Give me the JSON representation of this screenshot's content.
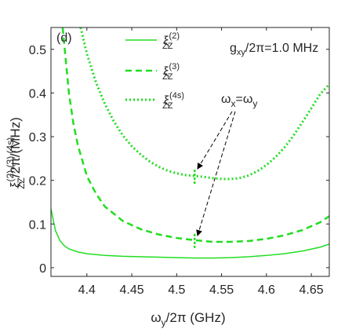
{
  "chart_data": {
    "type": "line",
    "panel_label": "(d)",
    "annotation_top": "g",
    "annotation_top_sub": "xy",
    "annotation_top_rest": "/2π=1.0 MHz",
    "annotation_arrow_w1": "ω",
    "annotation_arrow_w1_sub": "x",
    "annotation_arrow_eq": "=",
    "annotation_arrow_w2": "ω",
    "annotation_arrow_w2_sub": "y",
    "xlabel_main": "ω",
    "xlabel_sub": "y",
    "xlabel_rest": "/2π (GHz)",
    "ylabel_main": "ξ",
    "ylabel_sub": "ZZ",
    "ylabel_sup": "(2),(3),(4s)",
    "ylabel_rest": "/2π/(MHz)",
    "xlim": [
      4.36,
      4.67
    ],
    "ylim": [
      -0.02,
      0.55
    ],
    "xticks": [
      4.4,
      4.45,
      4.5,
      4.55,
      4.6,
      4.65
    ],
    "xtick_labels": [
      "4.4",
      "4.45",
      "4.5",
      "4.55",
      "4.6",
      "4.65"
    ],
    "yticks": [
      0,
      0.1,
      0.2,
      0.3,
      0.4,
      0.5
    ],
    "ytick_labels": [
      "0",
      "0.1",
      "0.2",
      "0.3",
      "0.4",
      "0.5"
    ],
    "grid": false,
    "legend_position": "top-center",
    "color": "#22dd22",
    "crossing_x": 4.52,
    "series": [
      {
        "name_main": "ξ",
        "name_sub": "ZZ",
        "name_sup": "(2)",
        "style": "solid",
        "x": [
          4.36,
          4.365,
          4.37,
          4.375,
          4.38,
          4.39,
          4.4,
          4.42,
          4.44,
          4.46,
          4.48,
          4.5,
          4.52,
          4.54,
          4.56,
          4.58,
          4.6,
          4.62,
          4.64,
          4.66,
          4.67
        ],
        "y": [
          0.135,
          0.085,
          0.062,
          0.05,
          0.043,
          0.036,
          0.032,
          0.028,
          0.026,
          0.025,
          0.024,
          0.023,
          0.022,
          0.022,
          0.023,
          0.025,
          0.028,
          0.032,
          0.038,
          0.047,
          0.054
        ]
      },
      {
        "name_main": "ξ",
        "name_sub": "ZZ",
        "name_sup": "(3)",
        "style": "dashed",
        "x": [
          4.373,
          4.38,
          4.385,
          4.39,
          4.4,
          4.41,
          4.42,
          4.44,
          4.46,
          4.48,
          4.5,
          4.52,
          4.54,
          4.56,
          4.58,
          4.6,
          4.62,
          4.64,
          4.66,
          4.67
        ],
        "y": [
          0.55,
          0.4,
          0.33,
          0.28,
          0.21,
          0.17,
          0.14,
          0.107,
          0.088,
          0.076,
          0.068,
          0.063,
          0.059,
          0.059,
          0.061,
          0.066,
          0.074,
          0.086,
          0.104,
          0.118
        ]
      },
      {
        "name_main": "ξ",
        "name_sub": "ZZ",
        "name_sup": "(4s)",
        "style": "dotted",
        "x": [
          4.393,
          4.4,
          4.41,
          4.42,
          4.43,
          4.44,
          4.45,
          4.46,
          4.47,
          4.48,
          4.49,
          4.5,
          4.51,
          4.52,
          4.53,
          4.54,
          4.55,
          4.56,
          4.57,
          4.58,
          4.59,
          4.6,
          4.61,
          4.62,
          4.63,
          4.64,
          4.65,
          4.66,
          4.67
        ],
        "y": [
          0.55,
          0.49,
          0.425,
          0.375,
          0.335,
          0.303,
          0.278,
          0.259,
          0.243,
          0.231,
          0.222,
          0.216,
          0.212,
          0.21,
          0.208,
          0.205,
          0.203,
          0.203,
          0.205,
          0.211,
          0.221,
          0.235,
          0.253,
          0.275,
          0.302,
          0.333,
          0.365,
          0.398,
          0.42
        ]
      }
    ]
  }
}
